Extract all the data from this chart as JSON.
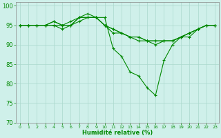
{
  "xlabel": "Humidité relative (%)",
  "background_color": "#cff0ea",
  "grid_color": "#aad8cc",
  "line_color": "#008800",
  "spine_color": "#888888",
  "ylim": [
    70,
    101
  ],
  "xlim": [
    -0.5,
    23.5
  ],
  "yticks": [
    70,
    75,
    80,
    85,
    90,
    95,
    100
  ],
  "xticks": [
    0,
    1,
    2,
    3,
    4,
    5,
    6,
    7,
    8,
    9,
    10,
    11,
    12,
    13,
    14,
    15,
    16,
    17,
    18,
    19,
    20,
    21,
    22,
    23
  ],
  "series": [
    [
      95,
      95,
      95,
      95,
      96,
      95,
      95,
      97,
      97,
      97,
      97,
      89,
      87,
      83,
      82,
      79,
      77,
      86,
      90,
      92,
      92,
      94,
      95,
      95
    ],
    [
      95,
      95,
      95,
      95,
      95,
      95,
      95,
      97,
      97,
      97,
      95,
      94,
      93,
      92,
      92,
      91,
      91,
      91,
      91,
      92,
      93,
      94,
      95,
      95
    ],
    [
      95,
      95,
      95,
      95,
      96,
      95,
      96,
      97,
      98,
      97,
      95,
      93,
      93,
      92,
      91,
      91,
      91,
      91,
      91,
      92,
      93,
      94,
      95,
      95
    ],
    [
      95,
      95,
      95,
      95,
      95,
      94,
      95,
      96,
      97,
      97,
      95,
      94,
      93,
      92,
      92,
      91,
      90,
      91,
      91,
      92,
      93,
      94,
      95,
      95
    ]
  ],
  "ytick_fontsize": 6,
  "xtick_fontsize": 4.5,
  "xlabel_fontsize": 6,
  "linewidth": 0.8,
  "markersize": 2.5
}
